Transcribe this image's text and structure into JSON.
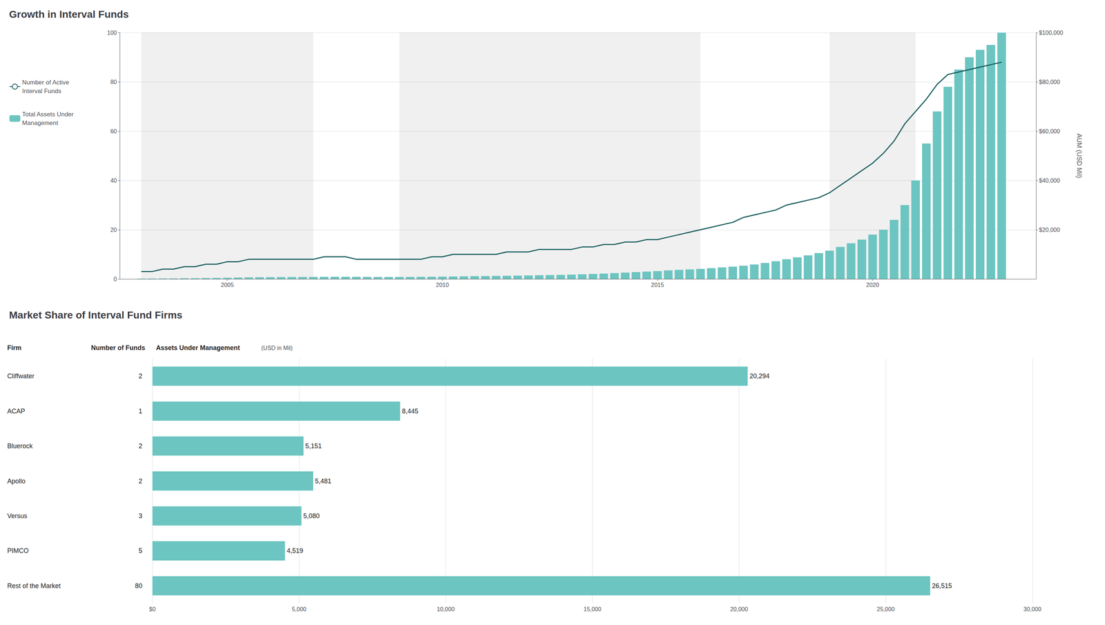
{
  "chart_data": [
    {
      "type": "bar",
      "title": "Growth in Interval Funds",
      "x": [
        2003,
        2003.25,
        2003.5,
        2003.75,
        2004,
        2004.25,
        2004.5,
        2004.75,
        2005,
        2005.25,
        2005.5,
        2005.75,
        2006,
        2006.25,
        2006.5,
        2006.75,
        2007,
        2007.25,
        2007.5,
        2007.75,
        2008,
        2008.25,
        2008.5,
        2008.75,
        2009,
        2009.25,
        2009.5,
        2009.75,
        2010,
        2010.25,
        2010.5,
        2010.75,
        2011,
        2011.25,
        2011.5,
        2011.75,
        2012,
        2012.25,
        2012.5,
        2012.75,
        2013,
        2013.25,
        2013.5,
        2013.75,
        2014,
        2014.25,
        2014.5,
        2014.75,
        2015,
        2015.25,
        2015.5,
        2015.75,
        2016,
        2016.25,
        2016.5,
        2016.75,
        2017,
        2017.25,
        2017.5,
        2017.75,
        2018,
        2018.25,
        2018.5,
        2018.75,
        2019,
        2019.25,
        2019.5,
        2019.75,
        2020,
        2020.25,
        2020.5,
        2020.75,
        2021,
        2021.25,
        2021.5,
        2021.75,
        2022,
        2022.25,
        2022.5,
        2022.75,
        2023
      ],
      "series": [
        {
          "name": "Number of Active\nInterval Funds",
          "type": "line",
          "color": "#1a5e5e",
          "values": [
            3,
            3,
            4,
            4,
            5,
            5,
            6,
            6,
            7,
            7,
            8,
            8,
            8,
            8,
            8,
            8,
            8,
            9,
            9,
            9,
            8,
            8,
            8,
            8,
            8,
            8,
            8,
            9,
            9,
            10,
            10,
            10,
            10,
            10,
            11,
            11,
            11,
            12,
            12,
            12,
            12,
            13,
            13,
            14,
            14,
            15,
            15,
            16,
            16,
            17,
            18,
            19,
            20,
            21,
            22,
            23,
            25,
            26,
            27,
            28,
            30,
            31,
            32,
            33,
            35,
            38,
            41,
            44,
            47,
            51,
            56,
            63,
            68,
            73,
            79,
            83,
            84,
            85,
            86,
            87,
            88
          ]
        },
        {
          "name": "Total Assets Under\nManagement",
          "type": "bar",
          "axis": "y2",
          "color": "#6cc5c1",
          "values": [
            150,
            170,
            200,
            230,
            280,
            320,
            380,
            420,
            500,
            580,
            650,
            700,
            730,
            760,
            800,
            820,
            840,
            870,
            890,
            900,
            870,
            840,
            820,
            800,
            820,
            840,
            870,
            910,
            960,
            1010,
            1080,
            1150,
            1200,
            1250,
            1300,
            1370,
            1450,
            1530,
            1600,
            1680,
            1780,
            1900,
            2050,
            2200,
            2400,
            2600,
            2800,
            3000,
            3200,
            3500,
            3700,
            3900,
            4100,
            4400,
            4700,
            5000,
            5400,
            5900,
            6500,
            7200,
            8000,
            8800,
            9600,
            10500,
            11500,
            13000,
            14500,
            16000,
            18000,
            20000,
            24000,
            30000,
            40000,
            55000,
            68000,
            78000,
            85000,
            90000,
            93000,
            95000,
            100000
          ]
        }
      ],
      "xlim": [
        2002.5,
        2023.8
      ],
      "xticks": [
        2005,
        2010,
        2015,
        2020
      ],
      "ylim": [
        0,
        100
      ],
      "yticks": [
        0,
        20,
        40,
        60,
        80,
        100
      ],
      "y2lim": [
        0,
        100000
      ],
      "y2ticks": [
        {
          "value": 20000,
          "label": "$20,000"
        },
        {
          "value": 40000,
          "label": "$40,000"
        },
        {
          "value": 60000,
          "label": "$60,000"
        },
        {
          "value": 80000,
          "label": "$80,000"
        },
        {
          "value": 100000,
          "label": "$100,000"
        }
      ],
      "y2label": "AUM (USD Mil)",
      "shaded_regions": [
        [
          2003,
          2007
        ],
        [
          2009,
          2016
        ],
        [
          2019,
          2021
        ]
      ],
      "grid": true,
      "legend": "left"
    },
    {
      "type": "bar",
      "orientation": "horizontal",
      "title": "Market Share of Interval Fund Firms",
      "categories": [
        "Cliffwater",
        "ACAP",
        "Bluerock",
        "Apollo",
        "Versus",
        "PIMCO",
        "Rest of the Market"
      ],
      "values": [
        20294,
        8445,
        5151,
        5481,
        5080,
        4519,
        26515
      ],
      "value_labels": [
        "20,294",
        "8,445",
        "5,151",
        "5,481",
        "5,080",
        "4,519",
        "26,515"
      ],
      "data_labels": true,
      "color": "#6cc5c1",
      "xlim": [
        0,
        30000
      ],
      "xticks": [
        {
          "value": 0,
          "label": "$0"
        },
        {
          "value": 5000,
          "label": "5,000"
        },
        {
          "value": 10000,
          "label": "10,000"
        },
        {
          "value": 15000,
          "label": "15,000"
        },
        {
          "value": 20000,
          "label": "20,000"
        },
        {
          "value": 25000,
          "label": "25,000"
        },
        {
          "value": 30000,
          "label": "30,000"
        }
      ],
      "ylabel": "Firm",
      "xlabel": "Assets Under Management",
      "xlabel_unit": "(USD in Mil)",
      "num_funds": {
        "label": "Number of Funds",
        "values": [
          2,
          1,
          2,
          2,
          3,
          5,
          80
        ]
      },
      "grid": true
    }
  ]
}
